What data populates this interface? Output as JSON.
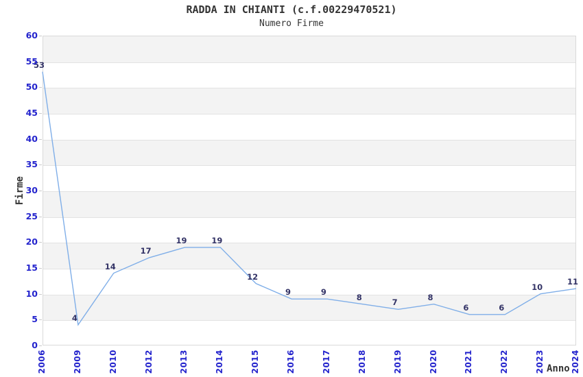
{
  "chart_data": {
    "type": "line",
    "title": "RADDA IN CHIANTI (c.f.00229470521)",
    "subtitle": "Numero Firme",
    "xlabel": "Anno",
    "ylabel": "Firme",
    "categories": [
      "2006",
      "2009",
      "2010",
      "2012",
      "2013",
      "2014",
      "2015",
      "2016",
      "2017",
      "2018",
      "2019",
      "2020",
      "2021",
      "2022",
      "2023",
      "2024"
    ],
    "values": [
      53,
      4,
      14,
      17,
      19,
      19,
      12,
      9,
      9,
      8,
      7,
      8,
      6,
      6,
      10,
      11
    ],
    "ylim": [
      0,
      60
    ],
    "y_ticks": [
      0,
      5,
      10,
      15,
      20,
      25,
      30,
      35,
      40,
      45,
      50,
      55,
      60
    ],
    "grid": "alternating-horizontal-bands",
    "legend": "none",
    "data_labels_shown": true,
    "colors": {
      "line": "#7faee8",
      "point_label": "#333366",
      "tick_label": "#2424cd",
      "band": "#f3f3f3",
      "grid_line": "#e2e2e2",
      "axis_line": "#d9d9d9",
      "tick_mark": "#c9c9c9",
      "title": "#333333"
    }
  }
}
